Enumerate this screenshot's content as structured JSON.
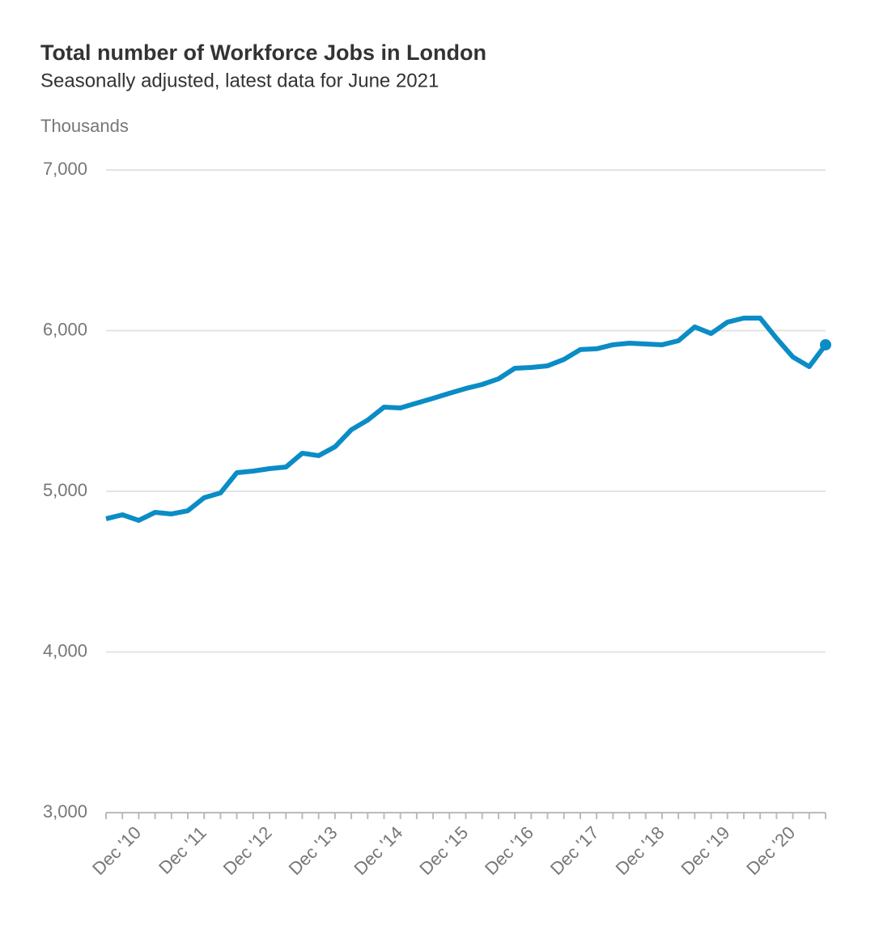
{
  "chart_data": {
    "type": "line",
    "title": "Total number of Workforce Jobs in London",
    "subtitle": "Seasonally adjusted, latest data for June 2021",
    "y_label": "Thousands",
    "categories": [
      null,
      null,
      "Dec '10",
      null,
      null,
      null,
      "Dec '11",
      null,
      null,
      null,
      "Dec '12",
      null,
      null,
      null,
      "Dec '13",
      null,
      null,
      null,
      "Dec '14",
      null,
      null,
      null,
      "Dec '15",
      null,
      null,
      null,
      "Dec '16",
      null,
      null,
      null,
      "Dec '17",
      null,
      null,
      null,
      "Dec '18",
      null,
      null,
      null,
      "Dec '19",
      null,
      null,
      null,
      "Dec '20",
      null,
      null
    ],
    "series": [
      {
        "name": "Workforce Jobs",
        "color": "#0b8cc6",
        "values": [
          4829,
          4854,
          4819,
          4869,
          4859,
          4879,
          4960,
          4990,
          5116,
          5126,
          5141,
          5151,
          5237,
          5222,
          5277,
          5383,
          5443,
          5524,
          5519,
          5549,
          5579,
          5610,
          5640,
          5665,
          5700,
          5766,
          5771,
          5781,
          5821,
          5882,
          5887,
          5912,
          5922,
          5917,
          5912,
          5937,
          6023,
          5982,
          6053,
          6078,
          6078,
          5952,
          5836,
          5776,
          5912
        ]
      }
    ],
    "ylim": [
      3000,
      7000
    ],
    "yticks": [
      {
        "value": 3000,
        "label": "3,000"
      },
      {
        "value": 4000,
        "label": "4,000"
      },
      {
        "value": 5000,
        "label": "5,000"
      },
      {
        "value": 6000,
        "label": "6,000"
      },
      {
        "value": 7000,
        "label": "7,000"
      }
    ],
    "grid": true
  }
}
